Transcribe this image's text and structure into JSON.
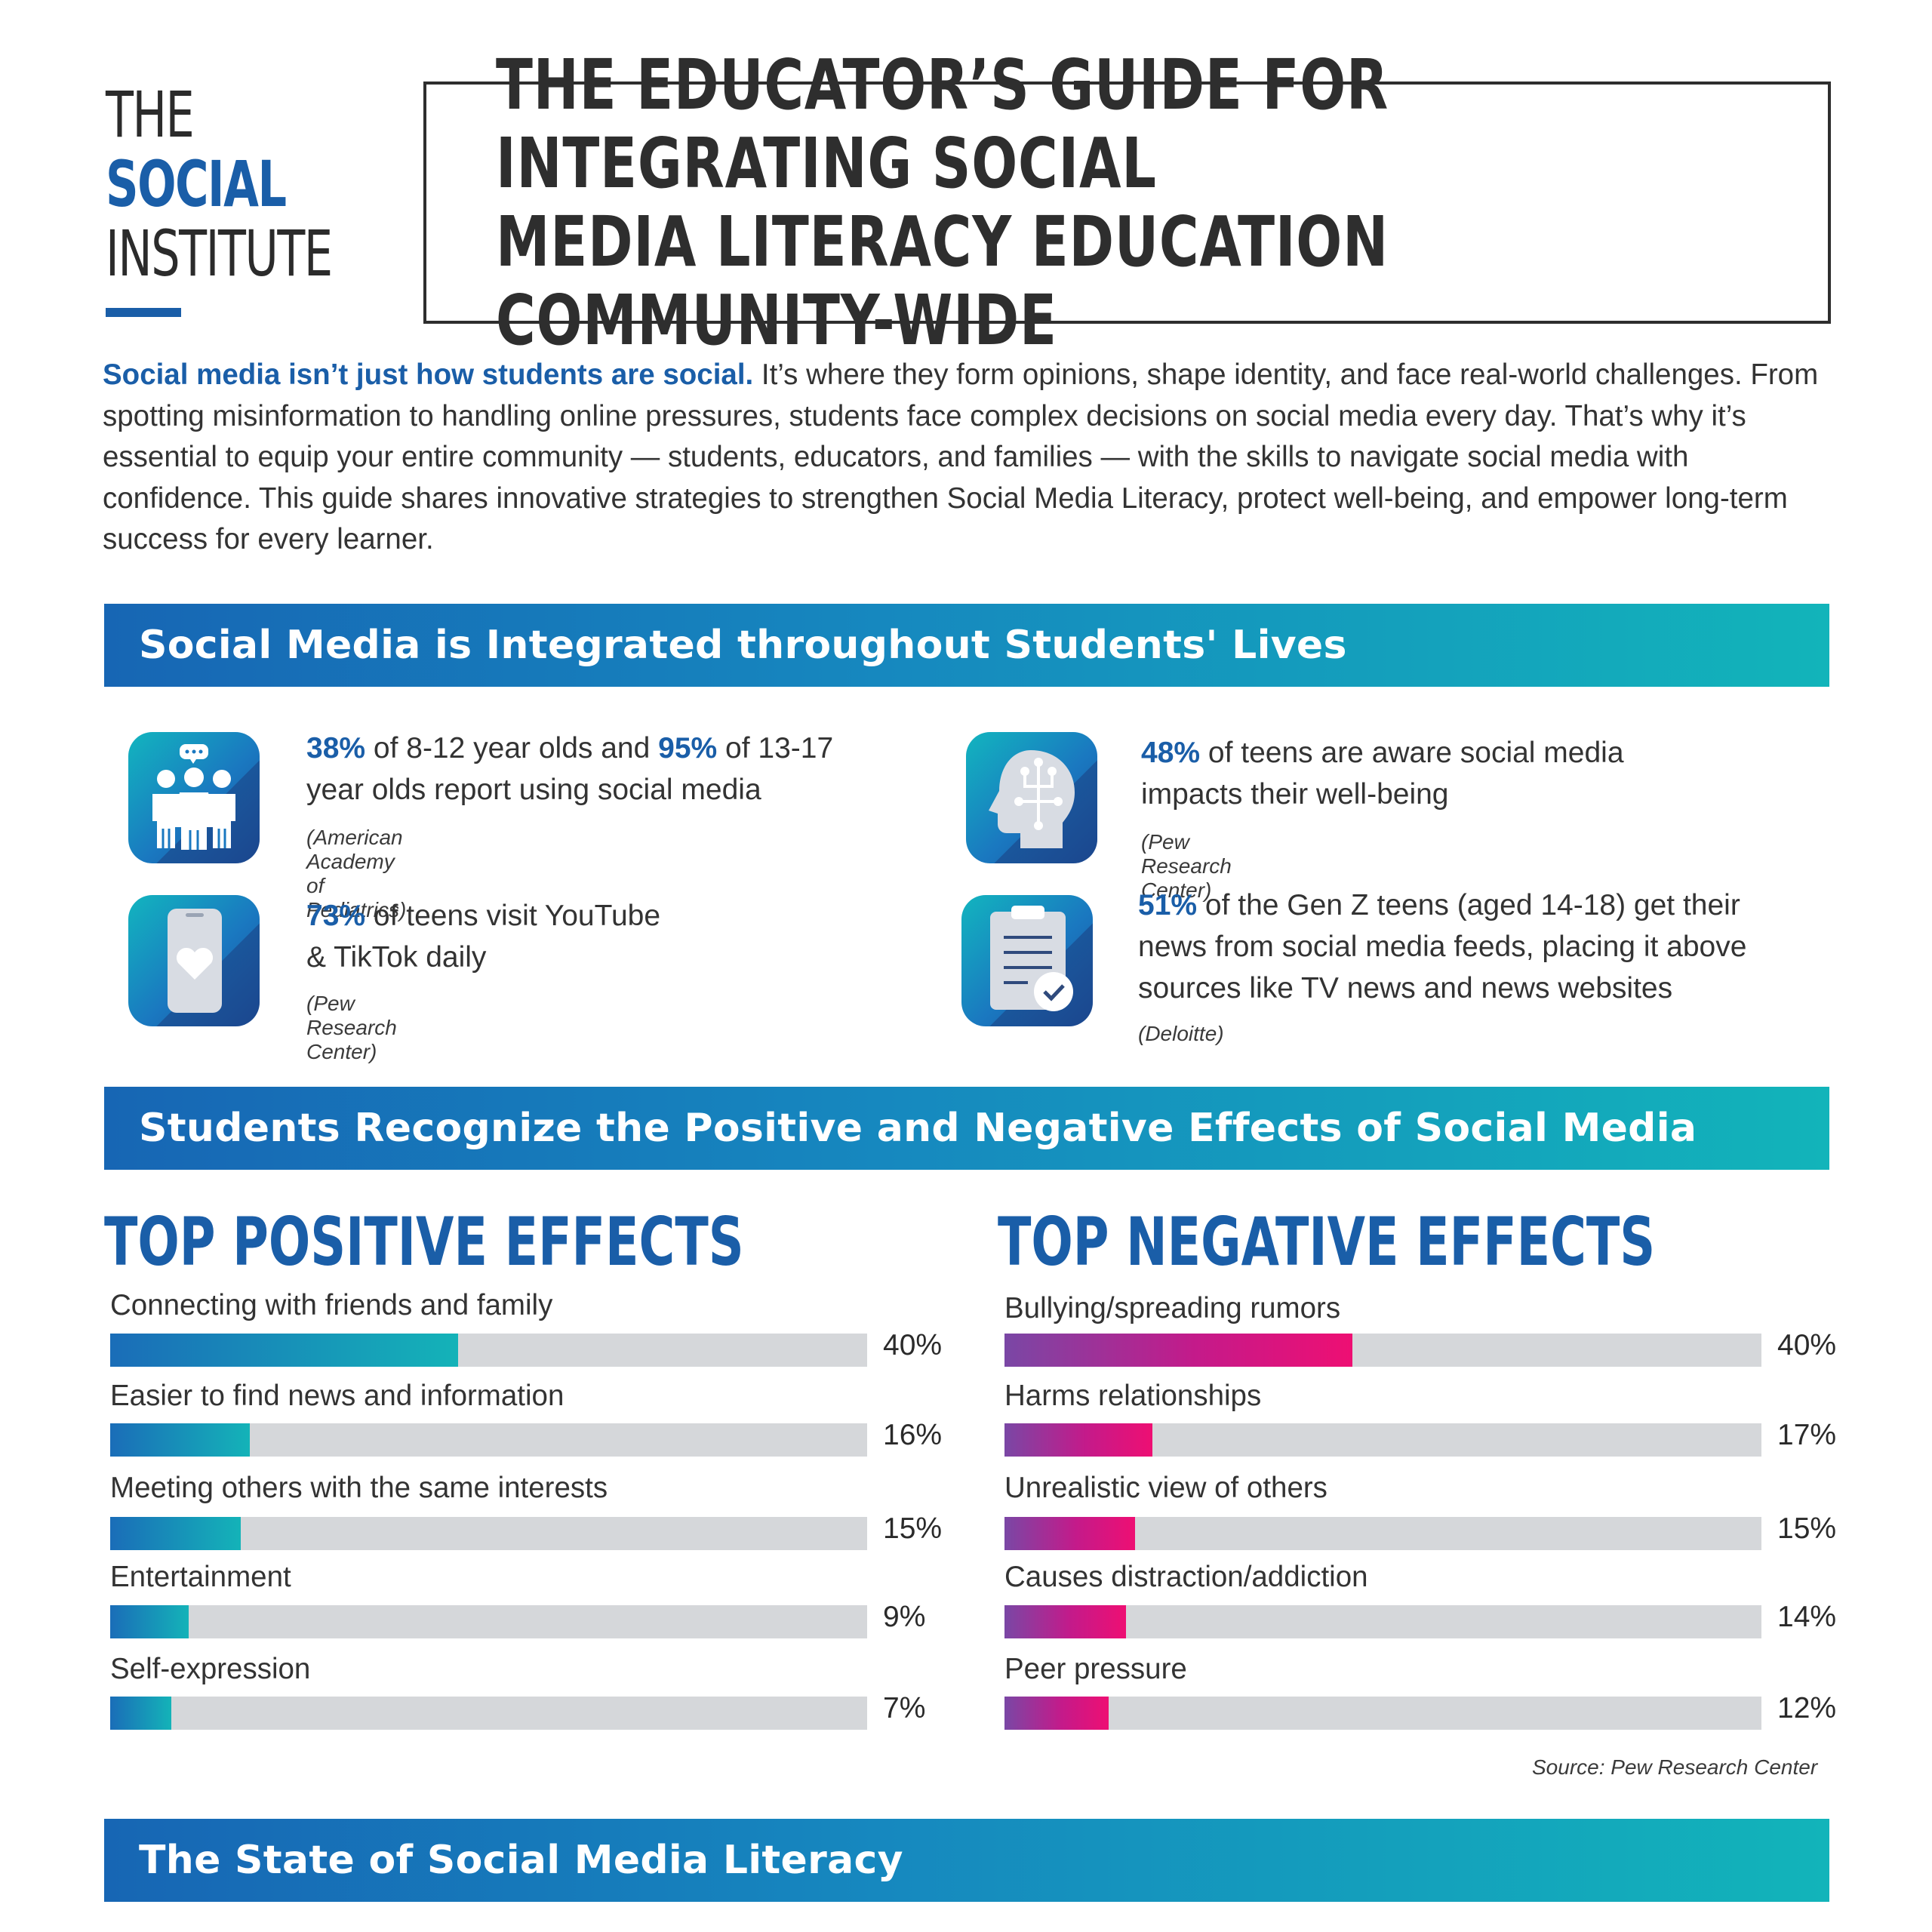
{
  "logo": {
    "line1": "THE",
    "line2": "SOCIAL",
    "line3": "INSTITUTE"
  },
  "title": "THE EDUCATOR’S GUIDE FOR INTEGRATING SOCIAL\nMEDIA LITERACY EDUCATION COMMUNITY-WIDE",
  "intro": {
    "lead": "Social media isn’t just how students are social.",
    "body": " It’s where they form opinions, shape identity, and face real-world challenges. From spotting misinformation to handling online pressures, students face complex decisions on social media every day. That’s why it’s essential to equip your entire community — students, educators, and families — with the skills to navigate social media with confidence. This guide shares innovative strategies to strengthen Social Media Literacy, protect well-being, and empower long-term success for every learner."
  },
  "sections": {
    "integrated": "Social Media is Integrated throughout Students' Lives",
    "effects": "Students Recognize the Positive and Negative Effects of Social Media",
    "literacy": "The State of Social Media Literacy"
  },
  "stats": [
    {
      "icon": "family-chat-icon",
      "a": "38%",
      "b": " of 8-12 year olds and ",
      "c": "95%",
      "d": " of 13-17",
      "line2": "year olds report using social media",
      "source": "(American Academy of Pediatrics)"
    },
    {
      "icon": "brain-head-icon",
      "a": "48%",
      "b": " of teens are aware social media",
      "line2": "impacts their well-being",
      "source": "(Pew Research Center)"
    },
    {
      "icon": "phone-heart-icon",
      "a": "73%",
      "b": " of teens visit YouTube",
      "line2": "& TikTok daily",
      "source": "(Pew Research Center)"
    },
    {
      "icon": "clipboard-check-icon",
      "a": "51%",
      "b": " of the Gen Z teens (aged 14-18) get their",
      "line2": "news from social media feeds, placing it above",
      "line3": "sources like TV news and news websites",
      "source": "(Deloitte)"
    }
  ],
  "effects": {
    "positive_title": "TOP POSITIVE EFFECTS",
    "negative_title": "TOP NEGATIVE EFFECTS",
    "positive": [
      {
        "label": "Connecting with friends and family",
        "value": 40,
        "text": "40%"
      },
      {
        "label": "Easier to find news and information",
        "value": 16,
        "text": "16%"
      },
      {
        "label": "Meeting others with the same interests",
        "value": 15,
        "text": "15%"
      },
      {
        "label": "Entertainment",
        "value": 9,
        "text": "9%"
      },
      {
        "label": "Self-expression",
        "value": 7,
        "text": "7%"
      }
    ],
    "negative": [
      {
        "label": "Bullying/spreading rumors",
        "value": 40,
        "text": "40%"
      },
      {
        "label": "Harms relationships",
        "value": 17,
        "text": "17%"
      },
      {
        "label": "Unrealistic view of others",
        "value": 15,
        "text": "15%"
      },
      {
        "label": "Causes distraction/addiction",
        "value": 14,
        "text": "14%"
      },
      {
        "label": "Peer pressure",
        "value": 12,
        "text": "12%"
      }
    ],
    "source": "Source: Pew Research Center"
  },
  "colors": {
    "brand_blue": "#1a5ea8",
    "teal": "#12b4ba",
    "magenta": "#ee0f73",
    "track": "#d5d7da"
  }
}
